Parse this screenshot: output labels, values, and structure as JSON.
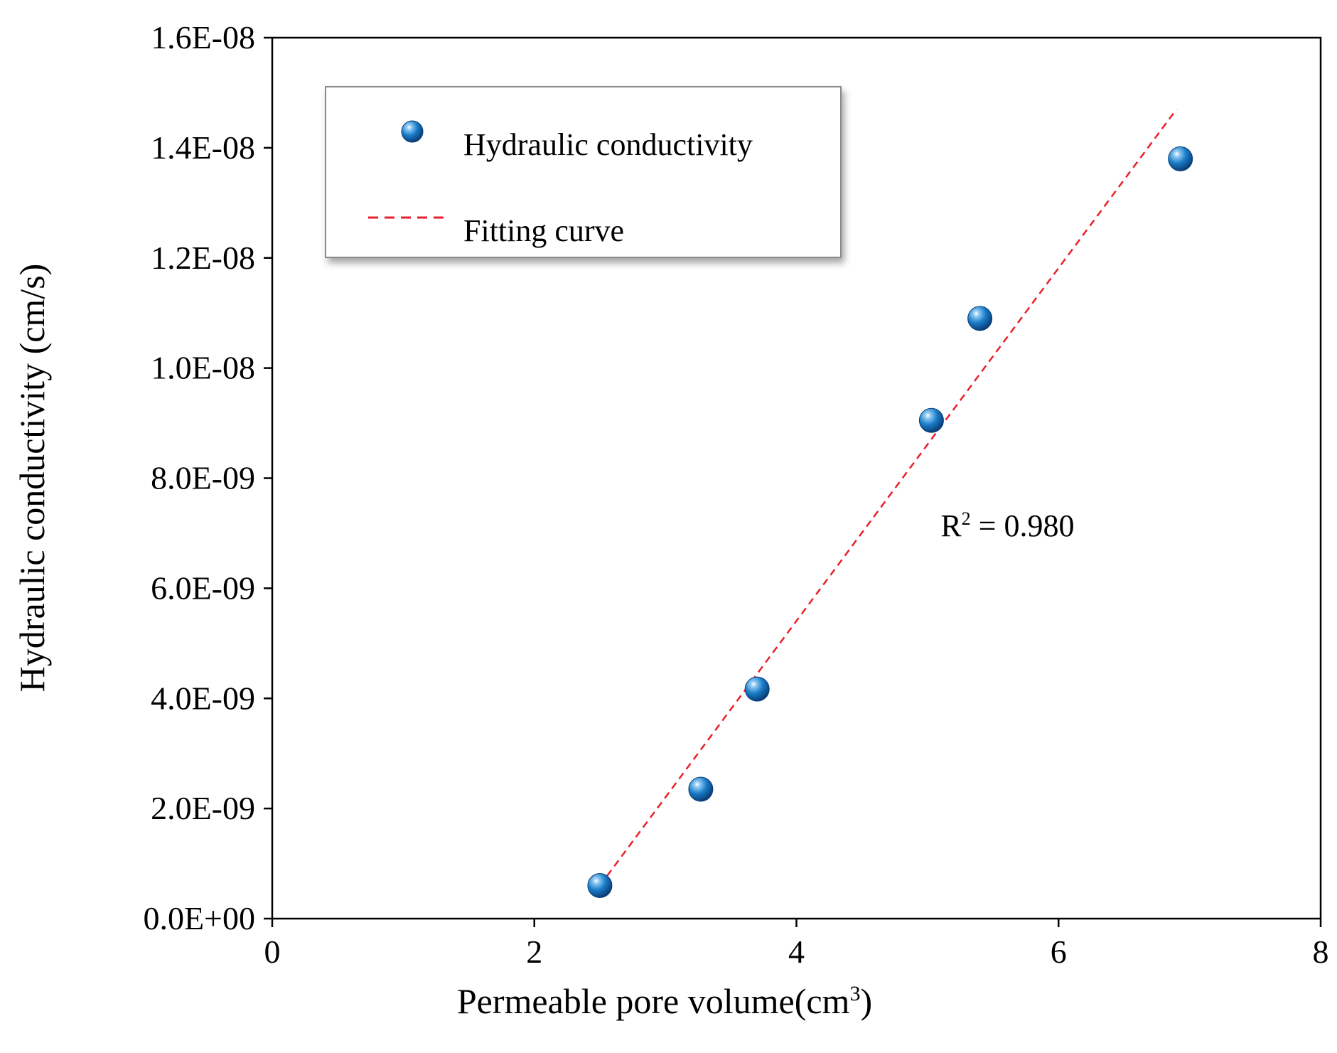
{
  "chart_data": {
    "type": "scatter",
    "xlabel_main": "Permeable pore volume(cm",
    "xlabel_sup": "3",
    "xlabel_tail": ")",
    "ylabel": "Hydraulic conductivity (cm/s)",
    "xlim": [
      0,
      8
    ],
    "ylim": [
      0,
      1.6e-08
    ],
    "x_ticks": [
      0,
      2,
      4,
      6,
      8
    ],
    "x_tick_labels": [
      "0",
      "2",
      "4",
      "6",
      "8"
    ],
    "y_ticks": [
      0,
      2e-09,
      4e-09,
      6e-09,
      8e-09,
      1e-08,
      1.2e-08,
      1.4e-08,
      1.6e-08
    ],
    "y_tick_labels": [
      "0.0E+00",
      "2.0E-09",
      "4.0E-09",
      "6.0E-09",
      "8.0E-09",
      "1.0E-08",
      "1.2E-08",
      "1.4E-08",
      "1.6E-08"
    ],
    "grid": false,
    "legend_position": "top-left",
    "series": [
      {
        "name": "Hydraulic conductivity",
        "kind": "points",
        "color": "#1a7cc8",
        "points": [
          {
            "x": 2.5,
            "y": 6e-10
          },
          {
            "x": 3.27,
            "y": 2.35e-09
          },
          {
            "x": 3.7,
            "y": 4.17e-09
          },
          {
            "x": 5.03,
            "y": 9.05e-09
          },
          {
            "x": 5.4,
            "y": 1.09e-08
          },
          {
            "x": 6.93,
            "y": 1.38e-08
          }
        ]
      },
      {
        "name": "Fitting curve",
        "kind": "dashed-line",
        "color": "#e8202a",
        "points": [
          {
            "x": 2.5,
            "y": 6e-10
          },
          {
            "x": 6.9,
            "y": 1.47e-08
          }
        ]
      }
    ],
    "annotation": {
      "text_main": "R",
      "text_sup": "2",
      "text_tail": " = 0.980",
      "x": 5.1,
      "y": 6.95e-09
    }
  }
}
